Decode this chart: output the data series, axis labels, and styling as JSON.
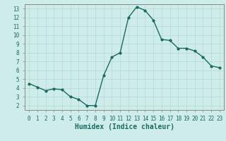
{
  "x": [
    0,
    1,
    2,
    3,
    4,
    5,
    6,
    7,
    8,
    9,
    10,
    11,
    12,
    13,
    14,
    15,
    16,
    17,
    18,
    19,
    20,
    21,
    22,
    23
  ],
  "y": [
    4.5,
    4.1,
    3.7,
    3.9,
    3.8,
    3.0,
    2.7,
    2.0,
    2.0,
    5.4,
    7.5,
    8.0,
    12.0,
    13.2,
    12.8,
    11.7,
    9.5,
    9.4,
    8.5,
    8.5,
    8.2,
    7.5,
    6.5,
    6.3
  ],
  "line_color": "#1a6b5e",
  "marker": "o",
  "markersize": 2,
  "linewidth": 1.0,
  "bg_color": "#ceecea",
  "grid_color": "#b8d8d5",
  "xlabel": "Humidex (Indice chaleur)",
  "xlim": [
    -0.5,
    23.5
  ],
  "ylim": [
    1.5,
    13.5
  ],
  "yticks": [
    2,
    3,
    4,
    5,
    6,
    7,
    8,
    9,
    10,
    11,
    12,
    13
  ],
  "xticks": [
    0,
    1,
    2,
    3,
    4,
    5,
    6,
    7,
    8,
    9,
    10,
    11,
    12,
    13,
    14,
    15,
    16,
    17,
    18,
    19,
    20,
    21,
    22,
    23
  ],
  "tick_label_fontsize": 5.5,
  "xlabel_fontsize": 7.0,
  "axis_color": "#1a6b5e",
  "spine_color": "#888888"
}
